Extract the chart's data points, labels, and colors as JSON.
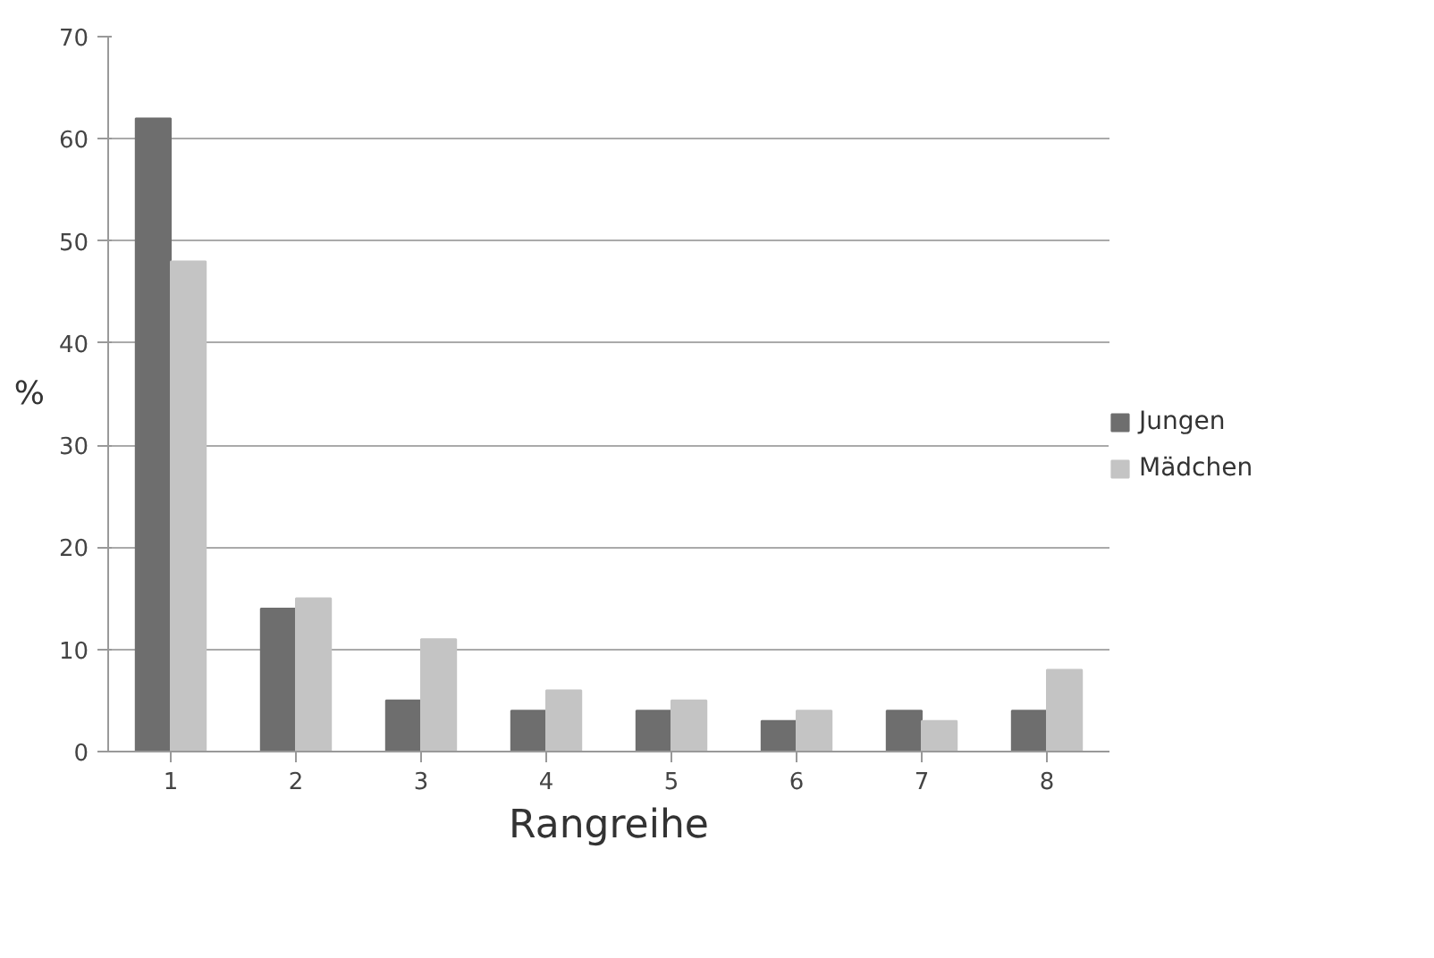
{
  "chart_data": {
    "type": "bar",
    "xlabel": "Rangreihe",
    "ylabel": "%",
    "categories": [
      "1",
      "2",
      "3",
      "4",
      "5",
      "6",
      "7",
      "8"
    ],
    "series": [
      {
        "name": "Jungen",
        "color": "#6e6e6e",
        "values": [
          62,
          14,
          5,
          4,
          4,
          3,
          4,
          4
        ]
      },
      {
        "name": "Mädchen",
        "color": "#c4c4c4",
        "values": [
          48,
          15,
          11,
          6,
          5,
          4,
          3,
          8
        ]
      }
    ],
    "ylim": [
      0,
      70
    ],
    "yticks": [
      0,
      10,
      20,
      30,
      40,
      50,
      60,
      70
    ],
    "grid": "y",
    "legend": "right"
  }
}
